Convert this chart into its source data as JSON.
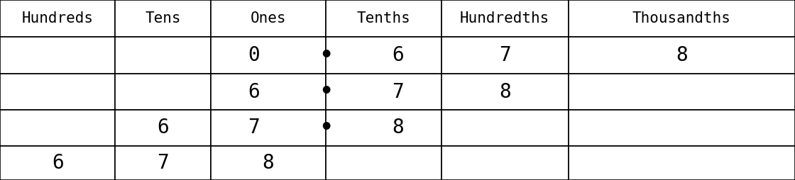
{
  "headers": [
    "Hundreds",
    "Tens",
    "Ones",
    "Tenths",
    "Hundredths",
    "Thousandths"
  ],
  "rows": [
    [
      "",
      "",
      "0",
      "6",
      "7",
      "8"
    ],
    [
      "",
      "",
      "6",
      "7",
      "8",
      ""
    ],
    [
      "",
      "6",
      "7",
      "8",
      "",
      ""
    ],
    [
      "6",
      "7",
      "8",
      "",
      "",
      ""
    ]
  ],
  "decimal_rows": [
    0,
    1,
    2
  ],
  "background_color": "#ffffff",
  "border_color": "#000000",
  "text_color": "#000000",
  "header_fontsize": 15,
  "cell_fontsize": 20,
  "col_starts": [
    0.0,
    0.145,
    0.265,
    0.41,
    0.555,
    0.715
  ],
  "col_ends": [
    0.145,
    0.265,
    0.41,
    0.555,
    0.715,
    1.0
  ],
  "row_starts": [
    1.0,
    0.795,
    0.59,
    0.39,
    0.19
  ],
  "row_ends": [
    0.795,
    0.59,
    0.39,
    0.19,
    0.0
  ]
}
